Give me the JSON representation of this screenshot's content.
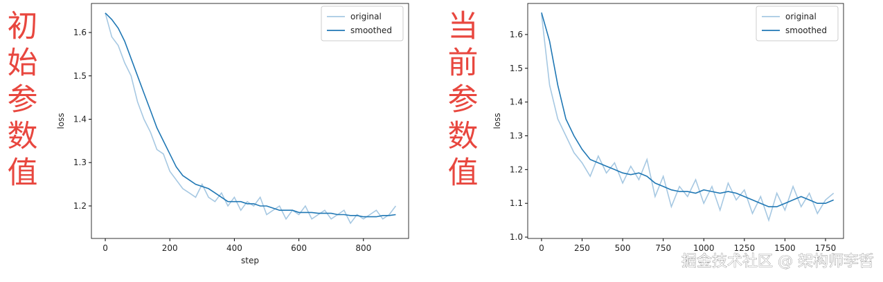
{
  "chart_data": [
    {
      "type": "line",
      "xlabel": "step",
      "ylabel": "loss",
      "legend": "upper right",
      "grid": false,
      "xlim": [
        -43,
        940
      ],
      "ylim": [
        1.125,
        1.667
      ],
      "xticks": [
        0,
        200,
        400,
        600,
        800
      ],
      "yticks": [
        1.2,
        1.3,
        1.4,
        1.5,
        1.6
      ],
      "x": [
        0,
        20,
        40,
        60,
        80,
        100,
        120,
        140,
        160,
        180,
        200,
        220,
        240,
        260,
        280,
        300,
        320,
        340,
        360,
        380,
        400,
        420,
        440,
        460,
        480,
        500,
        520,
        540,
        560,
        580,
        600,
        620,
        640,
        660,
        680,
        700,
        720,
        740,
        760,
        780,
        800,
        820,
        840,
        860,
        880,
        900
      ],
      "series": [
        {
          "name": "original",
          "color": "#a6c8e2",
          "values": [
            1.645,
            1.59,
            1.57,
            1.53,
            1.5,
            1.44,
            1.4,
            1.37,
            1.33,
            1.32,
            1.28,
            1.26,
            1.24,
            1.23,
            1.22,
            1.25,
            1.22,
            1.21,
            1.23,
            1.2,
            1.22,
            1.19,
            1.21,
            1.2,
            1.22,
            1.18,
            1.19,
            1.2,
            1.17,
            1.19,
            1.18,
            1.2,
            1.17,
            1.18,
            1.19,
            1.17,
            1.18,
            1.19,
            1.16,
            1.18,
            1.17,
            1.18,
            1.19,
            1.17,
            1.18,
            1.2
          ]
        },
        {
          "name": "smoothed",
          "color": "#1f77b4",
          "values": [
            1.645,
            1.63,
            1.61,
            1.58,
            1.54,
            1.5,
            1.46,
            1.42,
            1.38,
            1.35,
            1.32,
            1.29,
            1.27,
            1.26,
            1.25,
            1.245,
            1.24,
            1.23,
            1.22,
            1.21,
            1.21,
            1.21,
            1.205,
            1.205,
            1.2,
            1.2,
            1.195,
            1.19,
            1.19,
            1.19,
            1.185,
            1.185,
            1.185,
            1.183,
            1.183,
            1.183,
            1.18,
            1.18,
            1.178,
            1.178,
            1.175,
            1.175,
            1.175,
            1.178,
            1.178,
            1.18
          ]
        }
      ]
    },
    {
      "type": "line",
      "ylabel": "loss",
      "legend": "upper right",
      "grid": false,
      "xlim": [
        -85,
        1861
      ],
      "ylim": [
        0.996,
        1.692
      ],
      "xticks": [
        0,
        250,
        500,
        750,
        1000,
        1250,
        1500,
        1750
      ],
      "yticks": [
        {
          "value": 1,
          "label": "1.0"
        },
        1.1,
        1.2,
        1.3,
        1.4,
        1.5,
        1.6
      ],
      "x": [
        0,
        50,
        100,
        150,
        200,
        250,
        300,
        350,
        400,
        450,
        500,
        550,
        600,
        650,
        700,
        750,
        800,
        850,
        900,
        950,
        1000,
        1050,
        1100,
        1150,
        1200,
        1250,
        1300,
        1350,
        1400,
        1450,
        1500,
        1550,
        1600,
        1650,
        1700,
        1750,
        1800
      ],
      "series": [
        {
          "name": "original",
          "color": "#a6c8e2",
          "values": [
            1.66,
            1.45,
            1.35,
            1.3,
            1.25,
            1.22,
            1.18,
            1.24,
            1.19,
            1.22,
            1.16,
            1.21,
            1.17,
            1.23,
            1.12,
            1.18,
            1.09,
            1.15,
            1.12,
            1.17,
            1.1,
            1.15,
            1.08,
            1.16,
            1.11,
            1.14,
            1.07,
            1.12,
            1.05,
            1.13,
            1.08,
            1.15,
            1.09,
            1.13,
            1.07,
            1.11,
            1.13
          ]
        },
        {
          "name": "smoothed",
          "color": "#1f77b4",
          "values": [
            1.665,
            1.58,
            1.45,
            1.35,
            1.3,
            1.26,
            1.23,
            1.22,
            1.21,
            1.2,
            1.19,
            1.185,
            1.19,
            1.18,
            1.16,
            1.15,
            1.14,
            1.135,
            1.135,
            1.13,
            1.14,
            1.135,
            1.13,
            1.135,
            1.13,
            1.12,
            1.11,
            1.1,
            1.09,
            1.09,
            1.1,
            1.11,
            1.12,
            1.11,
            1.1,
            1.1,
            1.11
          ]
        }
      ]
    }
  ],
  "side_labels": [
    "初始参数值",
    "当前参数值"
  ],
  "watermark": "掘金技术社区 @ 架构师李哲"
}
